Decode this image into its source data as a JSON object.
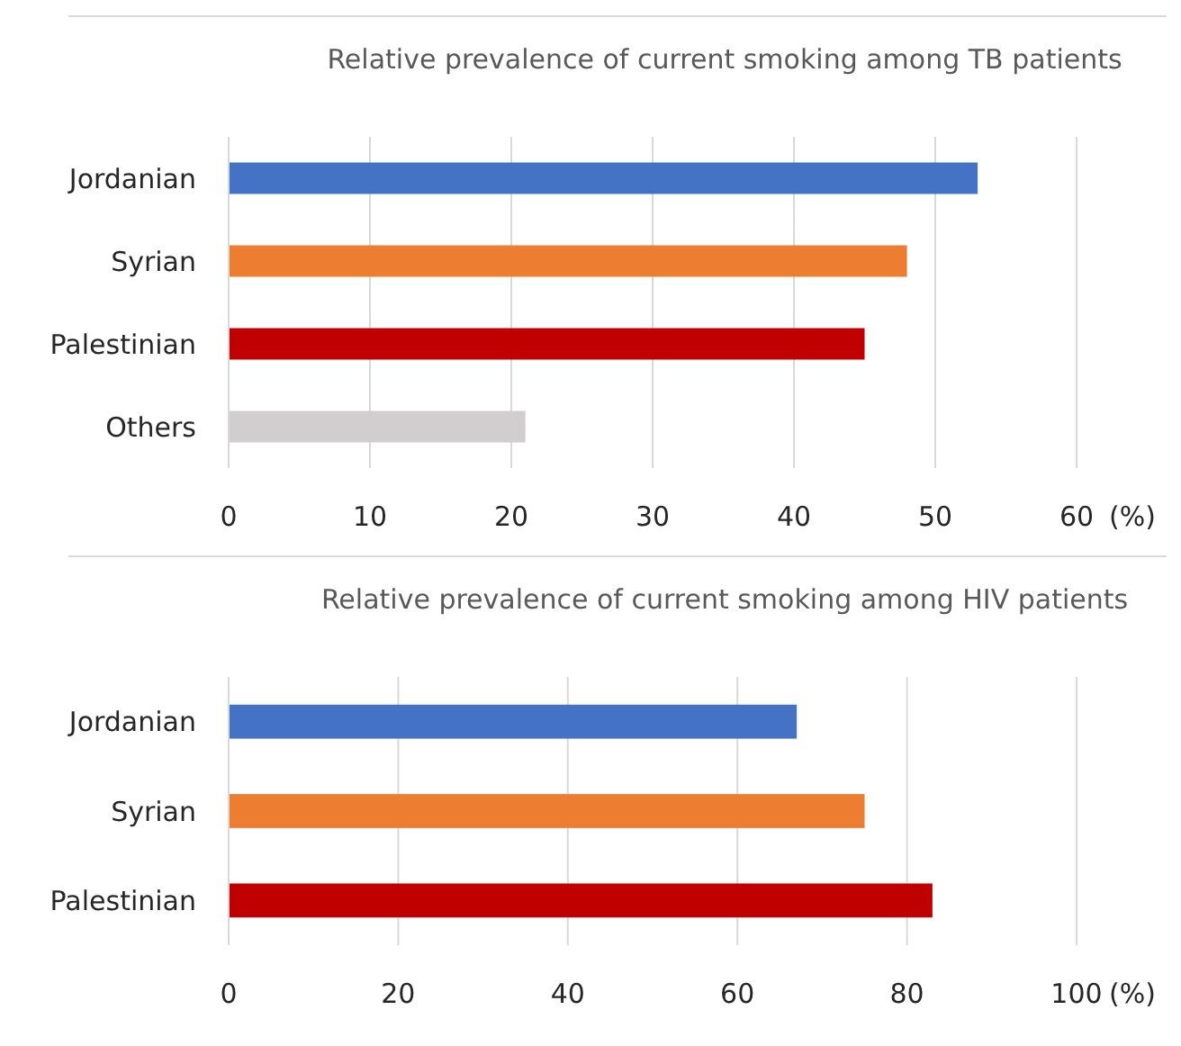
{
  "chart_data": [
    {
      "type": "bar",
      "orientation": "horizontal",
      "title": "Relative prevalence of current smoking among TB patients",
      "xlabel": "(%)",
      "categories": [
        "Jordanian",
        "Syrian",
        "Palestinian",
        "Others"
      ],
      "values": [
        53,
        48,
        45,
        21
      ],
      "colors": [
        "#4472c4",
        "#ed7d31",
        "#c00000",
        "#d0cece"
      ],
      "xlim": [
        0,
        60
      ],
      "xticks": [
        0,
        10,
        20,
        30,
        40,
        50,
        60
      ],
      "grid": "x"
    },
    {
      "type": "bar",
      "orientation": "horizontal",
      "title": "Relative prevalence of current smoking among HIV patients",
      "xlabel": "(%)",
      "categories": [
        "Jordanian",
        "Syrian",
        "Palestinian"
      ],
      "values": [
        67,
        75,
        83
      ],
      "colors": [
        "#4472c4",
        "#ed7d31",
        "#c00000"
      ],
      "xlim": [
        0,
        100
      ],
      "xticks": [
        0,
        20,
        40,
        60,
        80,
        100
      ],
      "grid": "x"
    }
  ]
}
